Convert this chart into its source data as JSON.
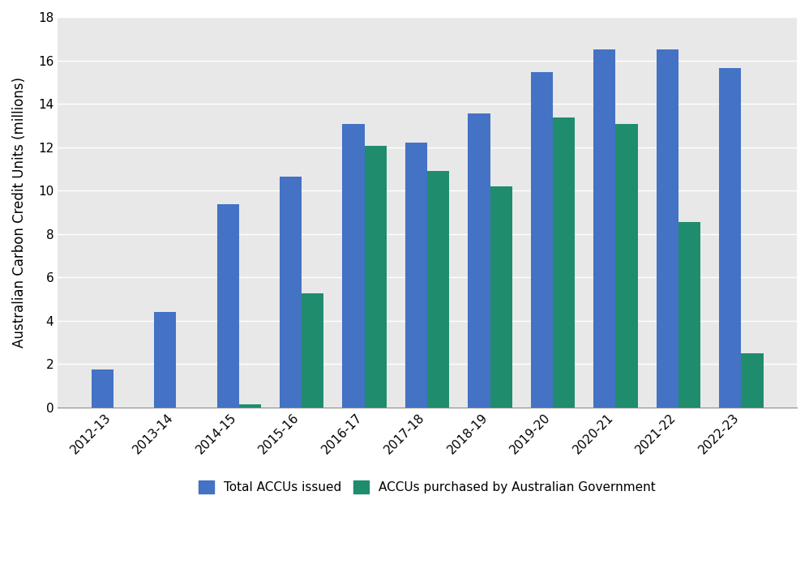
{
  "categories": [
    "2012-13",
    "2013-14",
    "2014-15",
    "2015-16",
    "2016-17",
    "2017-18",
    "2018-19",
    "2019-20",
    "2020-21",
    "2021-22",
    "2022-23"
  ],
  "issued": [
    1.75,
    4.4,
    9.35,
    10.65,
    13.05,
    12.2,
    13.55,
    15.45,
    16.5,
    16.5,
    15.65
  ],
  "purchased": [
    0.0,
    0.0,
    0.15,
    5.25,
    12.05,
    10.9,
    10.2,
    13.35,
    13.05,
    8.55,
    2.5
  ],
  "issued_color": "#4472C4",
  "purchased_color": "#1F8C6E",
  "ylabel": "Australian Carbon Credit Units (millions)",
  "ylim": [
    0,
    18
  ],
  "yticks": [
    0,
    2,
    4,
    6,
    8,
    10,
    12,
    14,
    16,
    18
  ],
  "legend_issued": "Total ACCUs issued",
  "legend_purchased": "ACCUs purchased by Australian Government",
  "bar_width": 0.35,
  "background_color": "#ffffff",
  "plot_bg_color": "#e8e8e8",
  "grid_color": "#ffffff"
}
